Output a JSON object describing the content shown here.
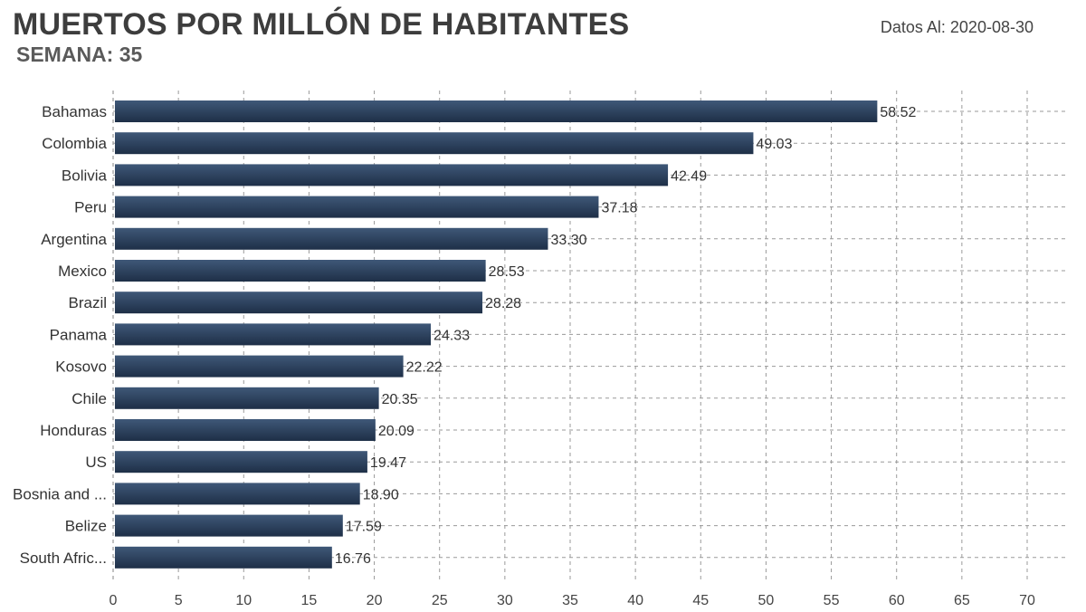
{
  "header": {
    "title": "MUERTOS POR MILLÓN DE HABITANTES",
    "subtitle": "SEMANA: 35",
    "date": "Datos Al: 2020-08-30"
  },
  "colors": {
    "bar_top": "#3f5878",
    "bar_bottom": "#1e2f47",
    "grid": "#9a9a9a"
  },
  "chart_data": {
    "type": "bar",
    "orientation": "horizontal",
    "title": "MUERTOS POR MILLÓN DE HABITANTES",
    "subtitle": "SEMANA: 35",
    "categories": [
      "Bahamas",
      "Colombia",
      "Bolivia",
      "Peru",
      "Argentina",
      "Mexico",
      "Brazil",
      "Panama",
      "Kosovo",
      "Chile",
      "Honduras",
      "US",
      "Bosnia and ...",
      "Belize",
      "South Afric..."
    ],
    "values": [
      58.52,
      49.03,
      42.49,
      37.18,
      33.3,
      28.53,
      28.28,
      24.33,
      22.22,
      20.35,
      20.09,
      19.47,
      18.9,
      17.59,
      16.76
    ],
    "value_labels": [
      "58.52",
      "49.03",
      "42.49",
      "37.18",
      "33.30",
      "28.53",
      "28.28",
      "24.33",
      "22.22",
      "20.35",
      "20.09",
      "19.47",
      "18.90",
      "17.59",
      "16.76"
    ],
    "xlim": [
      0,
      72
    ],
    "xticks": [
      0,
      5,
      10,
      15,
      20,
      25,
      30,
      35,
      40,
      45,
      50,
      55,
      60,
      65,
      70
    ],
    "xlabel": "",
    "ylabel": "",
    "grid": true
  }
}
